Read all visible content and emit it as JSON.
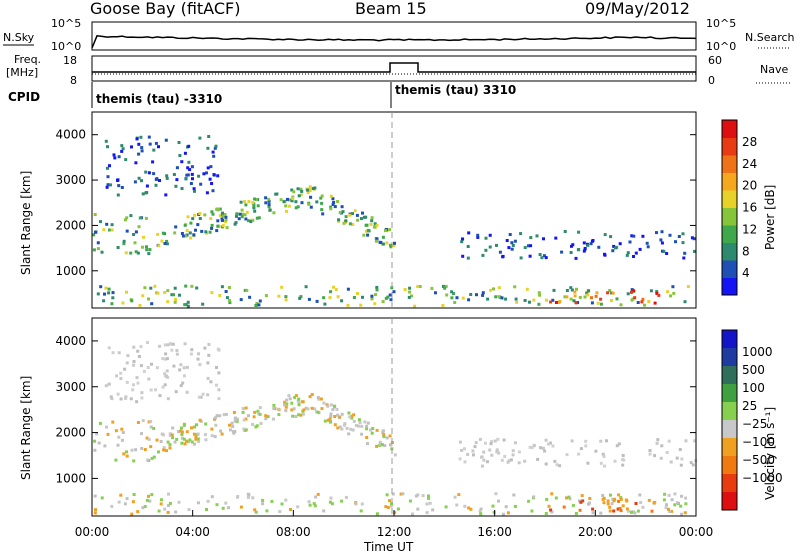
{
  "header": {
    "title": "Goose Bay (fitACF)",
    "beam": "Beam 15",
    "date": "09/May/2012"
  },
  "panels": {
    "nsky_label": "N.Sky",
    "nsearch_label": "N.Search",
    "nsky_ticks": [
      "10^5",
      "10^0"
    ],
    "nsearch_ticks": [
      "10^5",
      "10^0"
    ],
    "freq_label": "Freq.",
    "freq_unit": "[MHz]",
    "freq_ticks": [
      "18",
      "8"
    ],
    "nave_label": "Nave",
    "nave_ticks": [
      "60",
      "0"
    ],
    "cpid_label": "CPID",
    "cpid_segments": [
      "themis (tau) -3310",
      "themis (tau) 3310"
    ]
  },
  "chart_data": [
    {
      "type": "heatmap",
      "name": "power",
      "ylabel": "Slant Range [km]",
      "xlabel": "",
      "yticks": [
        1000,
        2000,
        3000,
        4000
      ],
      "ylim": [
        180,
        4500
      ],
      "colorbar_label": "Power [dB]",
      "colorbar_ticks": [
        "4",
        "8",
        "12",
        "16",
        "20",
        "24",
        "28"
      ],
      "colorbar_colors": [
        "#1414f5",
        "#1e4fb4",
        "#2e8a6e",
        "#3fa84a",
        "#86c53a",
        "#e8d22a",
        "#f5a81e",
        "#f07216",
        "#e83b14",
        "#dd0f10"
      ],
      "echo_regions": [
        {
          "t0": 0.0,
          "t1": 23.9,
          "r0": 250,
          "r1": 700,
          "level": "mid"
        },
        {
          "t0": 0.0,
          "t1": 2.5,
          "r0": 1400,
          "r1": 2300,
          "level": "mid"
        },
        {
          "t0": 2.5,
          "t1": 8.5,
          "r0": 1500,
          "r1": 2800,
          "level": "mid"
        },
        {
          "t0": 8.5,
          "t1": 12.0,
          "r0": 1500,
          "r1": 2900,
          "level": "mid"
        },
        {
          "t0": 0.5,
          "t1": 5.0,
          "r0": 2700,
          "r1": 4000,
          "level": "low"
        },
        {
          "t0": 14.5,
          "t1": 24.0,
          "r0": 1300,
          "r1": 1900,
          "level": "low"
        },
        {
          "t0": 18.0,
          "t1": 22.5,
          "r0": 300,
          "r1": 600,
          "level": "high"
        }
      ]
    },
    {
      "type": "heatmap",
      "name": "velocity",
      "ylabel": "Slant Range [km]",
      "xlabel": "Time UT",
      "yticks": [
        1000,
        2000,
        3000,
        4000
      ],
      "ylim": [
        180,
        4500
      ],
      "xticks": [
        "00:00",
        "04:00",
        "08:00",
        "12:00",
        "16:00",
        "20:00",
        "00:00"
      ],
      "colorbar_label": "Velocity [m s⁻¹]",
      "colorbar_ticks": [
        "1000",
        "500",
        "100",
        "25",
        "−25",
        "−100",
        "−500",
        "−1000"
      ],
      "colorbar_colors": [
        "#1414c8",
        "#1e3ca0",
        "#2e6e5a",
        "#3fa040",
        "#86d050",
        "#c8c8c8",
        "#f0a020",
        "#f07a10",
        "#e83c10",
        "#dd0f10"
      ]
    }
  ]
}
